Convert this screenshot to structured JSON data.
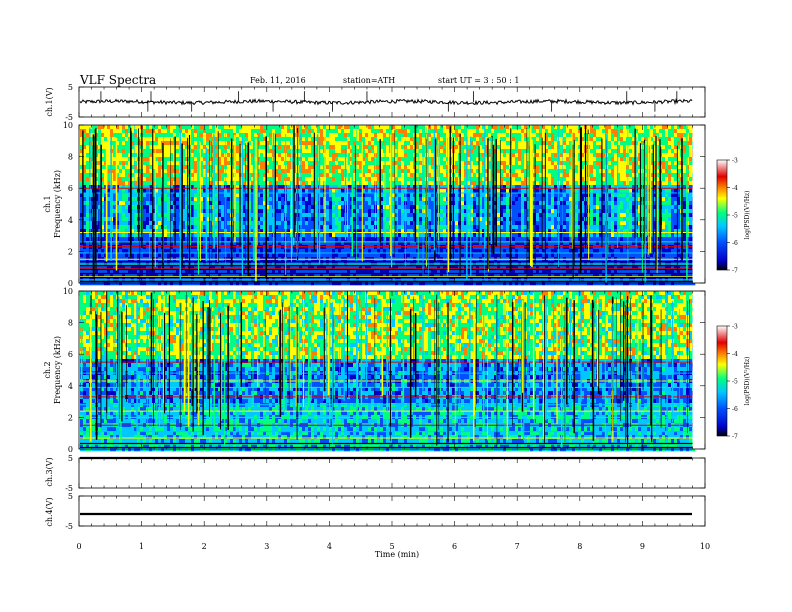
{
  "header": {
    "title": "VLF  Spectra",
    "date": "Feb. 11, 2016",
    "station": "station=ATH",
    "start": "start  UT  =   3  : 50 : 1"
  },
  "chart_data": [
    {
      "type": "line",
      "panel": "ch1-waveform",
      "ylabel": "ch.1(V)",
      "ylim": [
        -5,
        5
      ],
      "yticks": [
        "5",
        "-5"
      ],
      "x_range_min": [
        0,
        9.8
      ],
      "baseline_v": 0.0,
      "noise_v": 0.6,
      "spikes": [
        0.35,
        1.1,
        1.15,
        1.8,
        2.55,
        3.1,
        3.6,
        4.05,
        4.6,
        5.9,
        6.3,
        7.55,
        8.75,
        9.2,
        9.55
      ]
    },
    {
      "type": "heatmap",
      "panel": "ch1-spectrogram",
      "ylabel": "Frequency (kHz)",
      "channel_label": "ch.1",
      "ylim": [
        0,
        10
      ],
      "yticks": [
        "0",
        "2",
        "4",
        "6",
        "8",
        "10"
      ],
      "x_range_min": [
        0,
        9.8
      ],
      "colorbar": {
        "label": "log(PSD)(V²/Hz)",
        "ticks": [
          "-3",
          "-4",
          "-5",
          "-6",
          "-7"
        ],
        "range": [
          -7,
          -3
        ]
      },
      "bands_khz": [
        0.2,
        0.4,
        0.6,
        0.9,
        1.2,
        1.5,
        1.9,
        2.3,
        2.6,
        3.2,
        5.7,
        6.0
      ],
      "sferic_columns": 170
    },
    {
      "type": "heatmap",
      "panel": "ch2-spectrogram",
      "ylabel": "Frequency (kHz)",
      "channel_label": "ch.2",
      "ylim": [
        0,
        10
      ],
      "yticks": [
        "0",
        "2",
        "4",
        "6",
        "8",
        "10"
      ],
      "x_range_min": [
        0,
        9.8
      ],
      "colorbar": {
        "label": "log(PSD)(V²/Hz)",
        "ticks": [
          "-3",
          "-4",
          "-5",
          "-6",
          "-7"
        ],
        "range": [
          -7,
          -3
        ]
      },
      "bands_khz": [
        0.3,
        0.7,
        1.1,
        1.5,
        2.0,
        2.4,
        2.8,
        3.3,
        3.9,
        4.3,
        4.8,
        5.5
      ],
      "sferic_columns": 170
    },
    {
      "type": "line",
      "panel": "ch3-waveform",
      "ylabel": "ch.3(V)",
      "ylim": [
        -5,
        5
      ],
      "yticks": [
        "5",
        "-5"
      ],
      "x_range_min": [
        0,
        9.8
      ],
      "baseline_v": 5.0
    },
    {
      "type": "line",
      "panel": "ch4-waveform",
      "ylabel": "ch.4(V)",
      "ylim": [
        -5,
        5
      ],
      "yticks": [
        "5",
        "-5"
      ],
      "x_range_min": [
        0,
        9.8
      ],
      "baseline_v": -1.0
    }
  ],
  "x_axis": {
    "label": "Time  (min)",
    "ticks": [
      "0",
      "1",
      "2",
      "3",
      "4",
      "5",
      "6",
      "7",
      "8",
      "9",
      "10"
    ],
    "range": [
      0,
      10
    ]
  },
  "colormap": [
    "#000000",
    "#0000c8",
    "#0050ff",
    "#00c8ff",
    "#00ff80",
    "#ffff00",
    "#ff8000",
    "#e00000",
    "#ffffff"
  ]
}
